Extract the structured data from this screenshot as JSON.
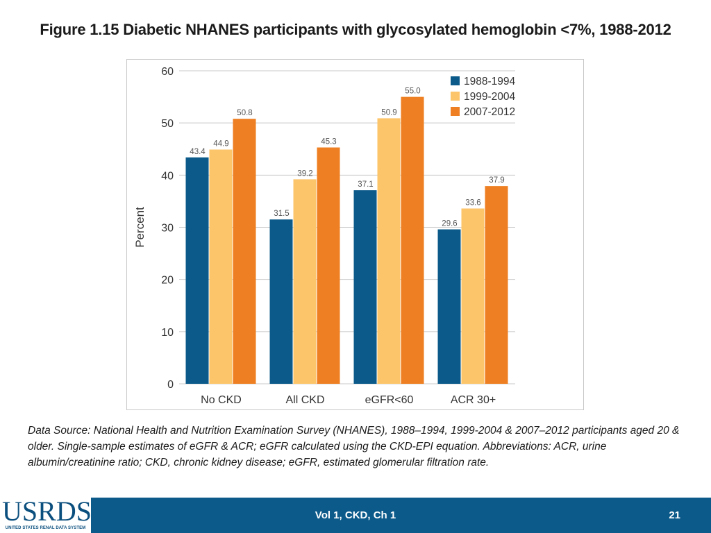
{
  "slide": {
    "title": "Figure 1.15 Diabetic NHANES participants with glycosylated hemoglobin <7%, 1988-2012",
    "footnote": "Data Source: National Health and Nutrition Examination Survey (NHANES), 1988–1994, 1999-2004 & 2007–2012 participants aged 20 & older. Single-sample estimates of eGFR & ACR; eGFR calculated using the CKD-EPI equation. Abbreviations: ACR, urine albumin/creatinine ratio; CKD, chronic kidney disease; eGFR, estimated glomerular filtration rate.",
    "footer_center": "Vol 1, CKD, Ch 1",
    "page_number": "21",
    "logo_text": "USRDS",
    "logo_subtext": "UNITED STATES RENAL DATA SYSTEM"
  },
  "colors": {
    "series": [
      "#0b5a8a",
      "#fdc56a",
      "#ee7f22"
    ],
    "footer": "#0b5a8a",
    "grid": "#c8c8c8"
  },
  "chart_data": {
    "type": "bar",
    "title": "",
    "xlabel": "",
    "ylabel": "Percent",
    "ylim": [
      0,
      60
    ],
    "yticks": [
      0,
      10,
      20,
      30,
      40,
      50,
      60
    ],
    "grid": true,
    "legend_position": "top-right",
    "categories": [
      "No CKD",
      "All CKD",
      "eGFR<60",
      "ACR 30+"
    ],
    "series": [
      {
        "name": "1988-1994",
        "values": [
          43.4,
          31.5,
          37.1,
          29.6
        ]
      },
      {
        "name": "1999-2004",
        "values": [
          44.9,
          39.2,
          50.9,
          33.6
        ]
      },
      {
        "name": "2007-2012",
        "values": [
          50.8,
          45.3,
          55.0,
          37.9
        ]
      }
    ]
  }
}
